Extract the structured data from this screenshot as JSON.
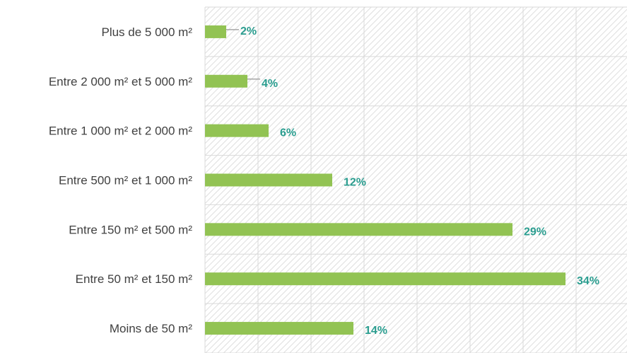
{
  "chart_data": {
    "type": "bar",
    "orientation": "horizontal",
    "categories": [
      "Plus de 5 000 m²",
      "Entre 2 000 m² et 5 000 m²",
      "Entre 1 000 m² et 2 000 m²",
      "Entre 500 m² et 1 000 m²",
      "Entre 150 m² et 500 m²",
      "Entre 50 m² et 150 m²",
      "Moins de 50 m²"
    ],
    "values": [
      2,
      4,
      6,
      12,
      29,
      34,
      14
    ],
    "data_labels": [
      "2%",
      "4%",
      "6%",
      "12%",
      "29%",
      "34%",
      "14%"
    ],
    "title": "",
    "xlabel": "",
    "ylabel": "",
    "xlim": [
      0,
      40
    ],
    "unit": "%",
    "grid": true,
    "legend": "none",
    "colors": {
      "bar": "#92c353",
      "label": "#2a9d8f",
      "grid": "#d9d9d9",
      "hatch": "#e3e3e3",
      "category_text": "#404040",
      "leader": "#a6a6a6"
    }
  }
}
